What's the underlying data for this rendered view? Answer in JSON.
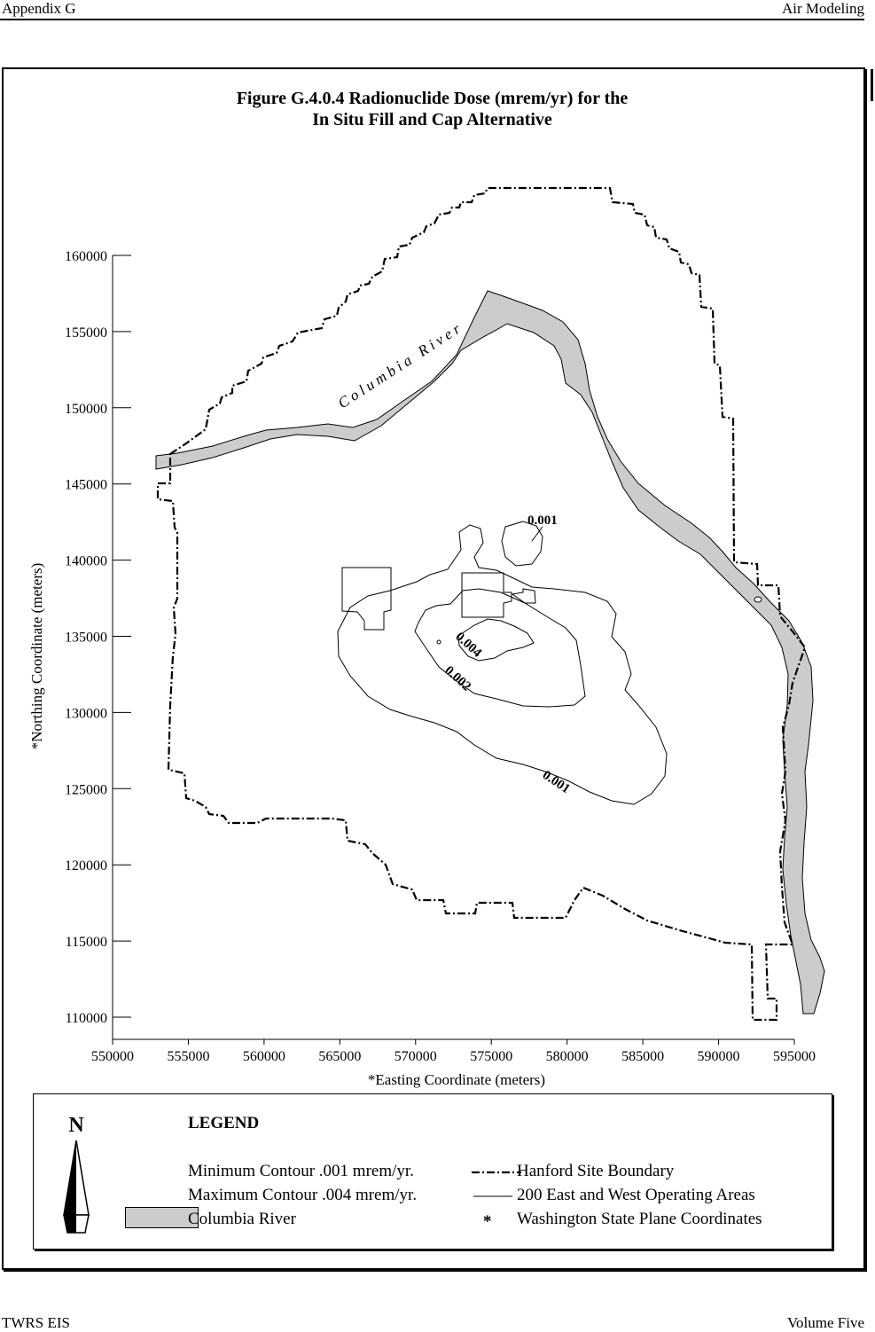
{
  "header": {
    "left": "Appendix G",
    "right": "Air Modeling"
  },
  "footer": {
    "left": "TWRS EIS",
    "right": "Volume Five"
  },
  "figure": {
    "title_line1": "Figure G.4.0.4  Radionuclide Dose (mrem/yr) for the",
    "title_line2": "In Situ Fill and Cap Alternative"
  },
  "map": {
    "river_label": "Columbia River",
    "contour_labels": [
      "0.001",
      "0.001",
      "0.002",
      "0.004"
    ],
    "x_axis_label": "*Easting Coordinate (meters)",
    "y_axis_label": "*Northing Coordinate (meters)",
    "x_ticks": [
      "550000",
      "555000",
      "560000",
      "565000",
      "570000",
      "575000",
      "580000",
      "585000",
      "590000",
      "595000"
    ],
    "y_ticks": [
      "160000",
      "155000",
      "150000",
      "145000",
      "140000",
      "135000",
      "130000",
      "125000",
      "120000",
      "115000",
      "110000"
    ],
    "x_range": [
      550000,
      595000
    ],
    "y_range": [
      110000,
      160000
    ],
    "river_fill": "#cccccc"
  },
  "legend": {
    "north_label": "N",
    "title": "LEGEND",
    "min_contour": "Minimum Contour .001 mrem/yr.",
    "max_contour": "Maximum Contour .004 mrem/yr.",
    "river": "Columbia River",
    "boundary": "Hanford Site Boundary",
    "operating_areas": "200 East and West Operating Areas",
    "asterisk": "*",
    "coordinates": "Washington State Plane Coordinates"
  }
}
